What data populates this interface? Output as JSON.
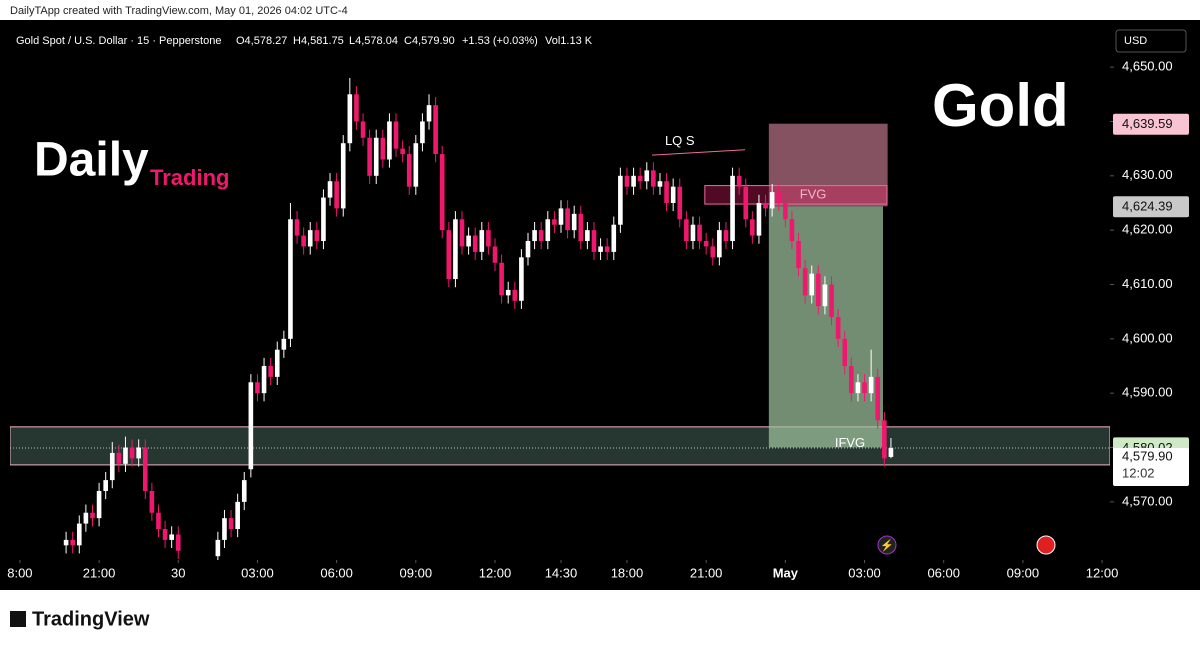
{
  "header": {
    "attribution": "DailyTApp created with TradingView.com, May 01, 2026 04:02 UTC-4",
    "symbol": "Gold Spot / U.S. Dollar · 15 · Pepperstone",
    "ohlc": [
      "O4,578.27",
      "H4,581.75",
      "L4,578.04",
      "C4,579.90"
    ],
    "change": "+1.53 (+0.03%)",
    "volume": "Vol1.13 K"
  },
  "currency": "USD",
  "branding": {
    "daily": "Daily",
    "trading": "Trading",
    "gold": "Gold",
    "footer": "TradingView"
  },
  "chart_data": {
    "type": "candlestick",
    "up_color": "#ffffff",
    "down_color": "#f0186e",
    "x": [
      8,
      9,
      10,
      11,
      12,
      13,
      14,
      15,
      16,
      17,
      18,
      19,
      20,
      21,
      22,
      23,
      24,
      25,
      31,
      32,
      33,
      34,
      35,
      36,
      37,
      38,
      39,
      40,
      41,
      42,
      43,
      44,
      45,
      46,
      47,
      48,
      49,
      50,
      51,
      52,
      53,
      54,
      55,
      56,
      57,
      58,
      59,
      60,
      61,
      62,
      63,
      64,
      65,
      66,
      67,
      68,
      69,
      70,
      71,
      72,
      73,
      74,
      75,
      76,
      77,
      78,
      79,
      80,
      81,
      82,
      83,
      84,
      85,
      86,
      87,
      88,
      89,
      90,
      91,
      92,
      93,
      94,
      95,
      96,
      97,
      98,
      99,
      100,
      101,
      102,
      103,
      104,
      105,
      106,
      107,
      108,
      109,
      110,
      111,
      112,
      113,
      114,
      115,
      116,
      117,
      118,
      119,
      120,
      121,
      122,
      123,
      124,
      125,
      126,
      127,
      128,
      129,
      130,
      131,
      132,
      133
    ],
    "open": [
      4562,
      4563,
      4562,
      4566,
      4568,
      4567,
      4572,
      4574,
      4579,
      4577,
      4580,
      4578,
      4580,
      4572,
      4568,
      4565,
      4563,
      4564,
      4560,
      4563,
      4567,
      4565,
      4570,
      4576,
      4592,
      4590,
      4595,
      4593,
      4598,
      4600,
      4622,
      4619,
      4617,
      4620,
      4618,
      4626,
      4629,
      4624,
      4636,
      4645,
      4640,
      4637,
      4630,
      4637,
      4633,
      4640,
      4635,
      4634,
      4628,
      4636,
      4640,
      4643,
      4634,
      4620,
      4611,
      4622,
      4617,
      4619,
      4616,
      4620,
      4617,
      4614,
      4608,
      4609,
      4607,
      4615,
      4618,
      4620,
      4618,
      4622,
      4621,
      4624,
      4620,
      4623,
      4618,
      4620,
      4616,
      4617,
      4616,
      4621,
      4630,
      4628,
      4630,
      4629,
      4631,
      4628,
      4629,
      4625,
      4628,
      4622,
      4618,
      4621,
      4618,
      4617,
      4615,
      4620,
      4618,
      4630,
      4628,
      4622,
      4619,
      4625,
      4624,
      4627,
      4625,
      4622,
      4618,
      4613,
      4608,
      4612,
      4606,
      4610,
      4604,
      4600,
      4595,
      4590,
      4592,
      4590,
      4593,
      4585,
      4578.27
    ],
    "high": [
      4564.5,
      4564.5,
      4567.5,
      4569.5,
      4569.5,
      4573.5,
      4575.5,
      4581,
      4580.5,
      4582,
      4581.5,
      4581.5,
      4581.5,
      4573.5,
      4569.5,
      4566.5,
      4565.5,
      4565.5,
      4564.5,
      4568.5,
      4568.5,
      4571.5,
      4575.5,
      4593.5,
      4593.5,
      4596.5,
      4596.5,
      4599.5,
      4601.5,
      4625,
      4623.5,
      4620.5,
      4621.5,
      4621.5,
      4627.5,
      4630.5,
      4630.5,
      4637.5,
      4648,
      4646.5,
      4641.5,
      4638.5,
      4638.5,
      4638.5,
      4641.5,
      4641.5,
      4636.5,
      4635.5,
      4637.5,
      4641.5,
      4645,
      4644.5,
      4635.5,
      4621.5,
      4623.5,
      4623.5,
      4620.5,
      4620.5,
      4621.5,
      4621.5,
      4618.5,
      4615.5,
      4610.5,
      4610.5,
      4616.5,
      4619.5,
      4621.5,
      4621.5,
      4623.5,
      4623.5,
      4625.5,
      4625.5,
      4624.5,
      4624.5,
      4621.5,
      4621.5,
      4618.5,
      4618.5,
      4622.5,
      4631.5,
      4631.5,
      4631.5,
      4631.5,
      4632.5,
      4632.5,
      4630.5,
      4630.5,
      4629.5,
      4629.5,
      4623.5,
      4622.5,
      4622.5,
      4619.5,
      4618.5,
      4621.5,
      4621.5,
      4631.5,
      4631.5,
      4629.5,
      4623.5,
      4626.5,
      4626.5,
      4628.5,
      4628.5,
      4626.5,
      4623.5,
      4619.5,
      4614.5,
      4613.5,
      4613.5,
      4611.5,
      4611.5,
      4605.5,
      4601.5,
      4596.5,
      4593.5,
      4593.5,
      4598,
      4594.5,
      4586.5,
      4581.75
    ],
    "low": [
      4560.5,
      4560.5,
      4560.5,
      4564.5,
      4565.5,
      4565.5,
      4570.5,
      4572.5,
      4575.5,
      4575.5,
      4576.5,
      4576.5,
      4570.5,
      4566.5,
      4563.5,
      4561.5,
      4561.5,
      4559.5,
      4558.5,
      4561.5,
      4563.5,
      4563.5,
      4568.5,
      4574.5,
      4588.5,
      4588.5,
      4591.5,
      4591.5,
      4596.5,
      4598.5,
      4617.5,
      4615.5,
      4615.5,
      4616.5,
      4616.5,
      4624.5,
      4622.5,
      4622.5,
      4634.5,
      4638.5,
      4635.5,
      4628.5,
      4628.5,
      4631.5,
      4631.5,
      4633.5,
      4632.5,
      4626.5,
      4626.5,
      4634.5,
      4638.5,
      4632.5,
      4618.5,
      4609.5,
      4609.5,
      4615.5,
      4615.5,
      4614.5,
      4614.5,
      4615.5,
      4612.5,
      4606.5,
      4606.5,
      4605.5,
      4605.5,
      4613.5,
      4616.5,
      4616.5,
      4616.5,
      4619.5,
      4619.5,
      4618.5,
      4618.5,
      4616.5,
      4616.5,
      4614.5,
      4614.5,
      4614.5,
      4614.5,
      4619.5,
      4626.5,
      4626.5,
      4627.5,
      4627.5,
      4626.5,
      4626.5,
      4623.5,
      4623.5,
      4620.5,
      4616.5,
      4616.5,
      4616.5,
      4615.5,
      4613.5,
      4613.5,
      4616.5,
      4616.5,
      4626.5,
      4620.5,
      4617.5,
      4617.5,
      4622.5,
      4622.5,
      4623.5,
      4620.5,
      4616.5,
      4611.5,
      4606.5,
      4606.5,
      4604.5,
      4604.5,
      4602.5,
      4598.5,
      4593.5,
      4588.5,
      4588.5,
      4588.5,
      4588.5,
      4583.5,
      4576.5,
      4578.04
    ],
    "close": [
      4563,
      4562,
      4566,
      4568,
      4567,
      4572,
      4574,
      4579,
      4577,
      4580,
      4578,
      4580,
      4572,
      4568,
      4565,
      4563,
      4564,
      4561,
      4563,
      4567,
      4565,
      4570,
      4574,
      4592,
      4590,
      4595,
      4593,
      4598,
      4600,
      4622,
      4619,
      4617,
      4620,
      4618,
      4626,
      4629,
      4624,
      4636,
      4645,
      4640,
      4637,
      4630,
      4637,
      4633,
      4640,
      4635,
      4634,
      4628,
      4636,
      4640,
      4643,
      4634,
      4620,
      4611,
      4622,
      4617,
      4619,
      4616,
      4620,
      4617,
      4614,
      4608,
      4609,
      4607,
      4615,
      4618,
      4620,
      4618,
      4622,
      4621,
      4624,
      4620,
      4623,
      4618,
      4620,
      4616,
      4617,
      4616,
      4621,
      4630,
      4628,
      4630,
      4629,
      4631,
      4628,
      4629,
      4625,
      4628,
      4622,
      4618,
      4621,
      4618,
      4617,
      4615,
      4620,
      4618,
      4630,
      4628,
      4622,
      4619,
      4625,
      4624,
      4627,
      4625,
      4622,
      4618,
      4613,
      4608,
      4612,
      4606,
      4610,
      4604,
      4600,
      4595,
      4590,
      4592,
      4590,
      4593,
      4585,
      4578,
      4579.9
    ],
    "xlim": [
      -0.5,
      166.2
    ],
    "ylim": [
      4559.3,
      4657.2
    ],
    "xticks": [
      {
        "value": 1,
        "label": "8:00"
      },
      {
        "value": 13,
        "label": "21:00"
      },
      {
        "value": 25,
        "label": "30"
      },
      {
        "value": 37,
        "label": "03:00"
      },
      {
        "value": 49,
        "label": "06:00"
      },
      {
        "value": 61,
        "label": "09:00"
      },
      {
        "value": 73,
        "label": "12:00"
      },
      {
        "value": 83,
        "label": "14:30"
      },
      {
        "value": 93,
        "label": "18:00"
      },
      {
        "value": 105,
        "label": "21:00"
      },
      {
        "value": 117,
        "label": "May"
      },
      {
        "value": 129,
        "label": "03:00"
      },
      {
        "value": 141,
        "label": "06:00"
      },
      {
        "value": 153,
        "label": "09:00"
      },
      {
        "value": 165,
        "label": "12:00"
      }
    ],
    "yticks": [
      {
        "value": 4650,
        "label": "4,650.00"
      },
      {
        "value": 4640,
        "label": "4,640.00"
      },
      {
        "value": 4630,
        "label": "4,630.00"
      },
      {
        "value": 4620,
        "label": "4,620.00"
      },
      {
        "value": 4610,
        "label": "4,610.00"
      },
      {
        "value": 4600,
        "label": "4,600.00"
      },
      {
        "value": 4590,
        "label": "4,590.00"
      },
      {
        "value": 4580,
        "label": "4,580.00"
      },
      {
        "value": 4570,
        "label": "4,570.00"
      }
    ],
    "price_labels": [
      {
        "value": 4639.59,
        "label": "4,639.59",
        "color": "#f8c3d2"
      },
      {
        "value": 4624.39,
        "label": "4,624.39",
        "color": "#c9c9c9"
      },
      {
        "value": 4580.02,
        "label": "4,580.02",
        "color": "#cfe9c6"
      },
      {
        "value": 4579.9,
        "label": "4,579.90",
        "color": "#ffffff"
      }
    ],
    "last_time": "12:02",
    "zones": [
      {
        "from_x": -0.5,
        "to_x": 166.2,
        "from_y": 4576.8,
        "to_y": 4583.8,
        "color": "rgba(70,100,90,0.55)",
        "border": "#f4b6cc"
      },
      {
        "from_x": 114.5,
        "to_x": 132.5,
        "from_y": 4624.39,
        "to_y": 4639.59,
        "color": "rgba(176,110,128,0.75)",
        "border": "none"
      },
      {
        "from_x": 114.5,
        "to_x": 131.8,
        "from_y": 4580.02,
        "to_y": 4624.39,
        "color": "rgba(160,195,158,0.72)",
        "border": "none"
      },
      {
        "from_x": 104.8,
        "to_x": 132.4,
        "from_y": 4624.8,
        "to_y": 4628.2,
        "color": "rgba(233,30,99,0.35)",
        "border": "#f06aa0"
      }
    ],
    "lines": [
      {
        "x": [
          96.8,
          110.9
        ],
        "y": [
          4633.8,
          4634.8
        ],
        "color": "#f06aa0"
      }
    ],
    "annotations": [
      {
        "x": 101,
        "y": 4636.3,
        "label": "LQ S",
        "color": "#ffffff"
      },
      {
        "x": 121.2,
        "y": 4626.5,
        "label": "FVG",
        "color": "#f4b6cc"
      },
      {
        "x": 126.8,
        "y": 4580.7,
        "label": "IFVG",
        "color": "#ffffff"
      }
    ]
  }
}
